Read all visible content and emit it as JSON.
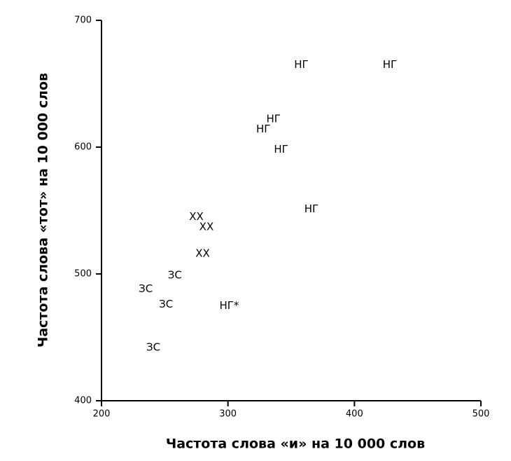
{
  "chart_data": {
    "type": "scatter",
    "x_label": "Частота слова «и» на 10 000 слов",
    "y_label": "Частота слова «тот» на 10 000 слов",
    "x": [
      358,
      428,
      336,
      328,
      342,
      366,
      275,
      283,
      280,
      258,
      235,
      251,
      301,
      241
    ],
    "values": [
      665,
      665,
      622,
      614,
      598,
      551,
      545,
      537,
      516,
      499,
      488,
      476,
      475,
      442
    ],
    "labels": [
      "НГ",
      "НГ",
      "НГ",
      "НГ",
      "НГ",
      "НГ",
      "ХХ",
      "ХХ",
      "ХХ",
      "ЗС",
      "ЗС",
      "ЗС",
      "НГ*",
      "ЗС"
    ],
    "color": "#000000",
    "xlim": [
      200,
      500
    ],
    "xticks": [
      200,
      300,
      400,
      500
    ],
    "ylim": [
      400,
      700
    ],
    "yticks": [
      400,
      500,
      600,
      700
    ],
    "grid": false
  }
}
